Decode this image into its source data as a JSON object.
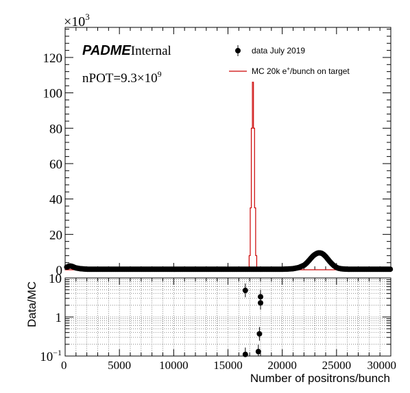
{
  "chart_data": {
    "type": "scatter",
    "upper": {
      "ylabel": "",
      "y_multiplier_label": "×10",
      "y_multiplier_exp": "3",
      "xlim": [
        0,
        30000
      ],
      "ylim": [
        0,
        137
      ],
      "yticks": [
        0,
        20,
        40,
        60,
        80,
        100,
        120
      ],
      "series": [
        {
          "name": "data July 2019",
          "kind": "points",
          "color": "#000000",
          "x": [
            200,
            400,
            600,
            800,
            1000,
            1200,
            1400,
            1600,
            1800,
            2000,
            2500,
            3000,
            3500,
            4000,
            4500,
            5000,
            5500,
            6000,
            6500,
            7000,
            7500,
            8000,
            8500,
            9000,
            9500,
            10000,
            10500,
            11000,
            11500,
            12000,
            12500,
            13000,
            13500,
            14000,
            14500,
            15000,
            15500,
            16000,
            16500,
            17000,
            17500,
            18000,
            18500,
            19000,
            19500,
            20000,
            20500,
            21000,
            21500,
            22000,
            22200,
            22400,
            22600,
            22800,
            23000,
            23200,
            23400,
            23600,
            23800,
            24000,
            24200,
            24400,
            24600,
            24800,
            25000,
            25200,
            25500,
            26000,
            26500,
            27000,
            27500,
            28000,
            28500,
            29000,
            29500,
            29900
          ],
          "y": [
            1.5,
            2.2,
            2.0,
            1.5,
            1.0,
            0.8,
            0.6,
            0.5,
            0.4,
            0.3,
            0.3,
            0.3,
            0.3,
            0.3,
            0.3,
            0.3,
            0.3,
            0.3,
            0.3,
            0.3,
            0.3,
            0.3,
            0.3,
            0.3,
            0.3,
            0.3,
            0.3,
            0.3,
            0.3,
            0.3,
            0.3,
            0.3,
            0.3,
            0.3,
            0.3,
            0.3,
            0.3,
            0.3,
            0.3,
            0.3,
            0.3,
            0.3,
            0.3,
            0.3,
            0.3,
            0.3,
            0.4,
            0.6,
            1.2,
            2.5,
            3.5,
            4.8,
            6.2,
            7.6,
            8.6,
            9.3,
            9.6,
            9.4,
            8.7,
            7.5,
            6.0,
            4.5,
            3.2,
            2.1,
            1.3,
            0.8,
            0.5,
            0.3,
            0.3,
            0.3,
            0.3,
            0.3,
            0.3,
            0.3,
            0.3,
            0.3
          ]
        },
        {
          "name": "MC 20k e",
          "name_sup": "+",
          "name_suffix": "/bunch on target",
          "kind": "histogram",
          "color": "#cc0000",
          "x": [
            16800,
            16900,
            17000,
            17100,
            17200,
            17300,
            17400,
            17500,
            17600,
            17700,
            17800,
            17900
          ],
          "y": [
            0,
            1,
            8,
            35,
            80,
            106,
            80,
            35,
            8,
            1,
            0,
            0
          ]
        }
      ]
    },
    "lower": {
      "ylabel": "Data/MC",
      "xlabel": "Number of positrons/bunch",
      "log_y": true,
      "xlim": [
        0,
        30000
      ],
      "ylim": [
        0.1,
        10
      ],
      "yticks": [
        {
          "value": 0.1,
          "label": "10",
          "sup": "−1"
        },
        {
          "value": 1,
          "label": "1",
          "sup": ""
        },
        {
          "value": 10,
          "label": "10",
          "sup": ""
        }
      ],
      "xticks": [
        0,
        5000,
        10000,
        15000,
        20000,
        25000,
        30000
      ],
      "xticklabels": [
        "0",
        "5000",
        "10000",
        "15000",
        "20000",
        "25000",
        "30000"
      ],
      "grid": true,
      "points": [
        {
          "x": 16600,
          "y": 4.8
        },
        {
          "x": 16600,
          "y": 0.11
        },
        {
          "x": 17800,
          "y": 0.13
        },
        {
          "x": 17900,
          "y": 0.37
        },
        {
          "x": 18000,
          "y": 2.3
        },
        {
          "x": 18000,
          "y": 3.3
        }
      ]
    },
    "annotations": {
      "brand": "PADME",
      "brand_suffix": "Internal",
      "npot_prefix": "nPOT=9.3×10",
      "npot_exp": "9"
    },
    "legend": {
      "placement": "top-right",
      "data_label": "data July 2019",
      "mc_label": "MC 20k e",
      "mc_sup": "+",
      "mc_suffix": "/bunch on target"
    }
  }
}
